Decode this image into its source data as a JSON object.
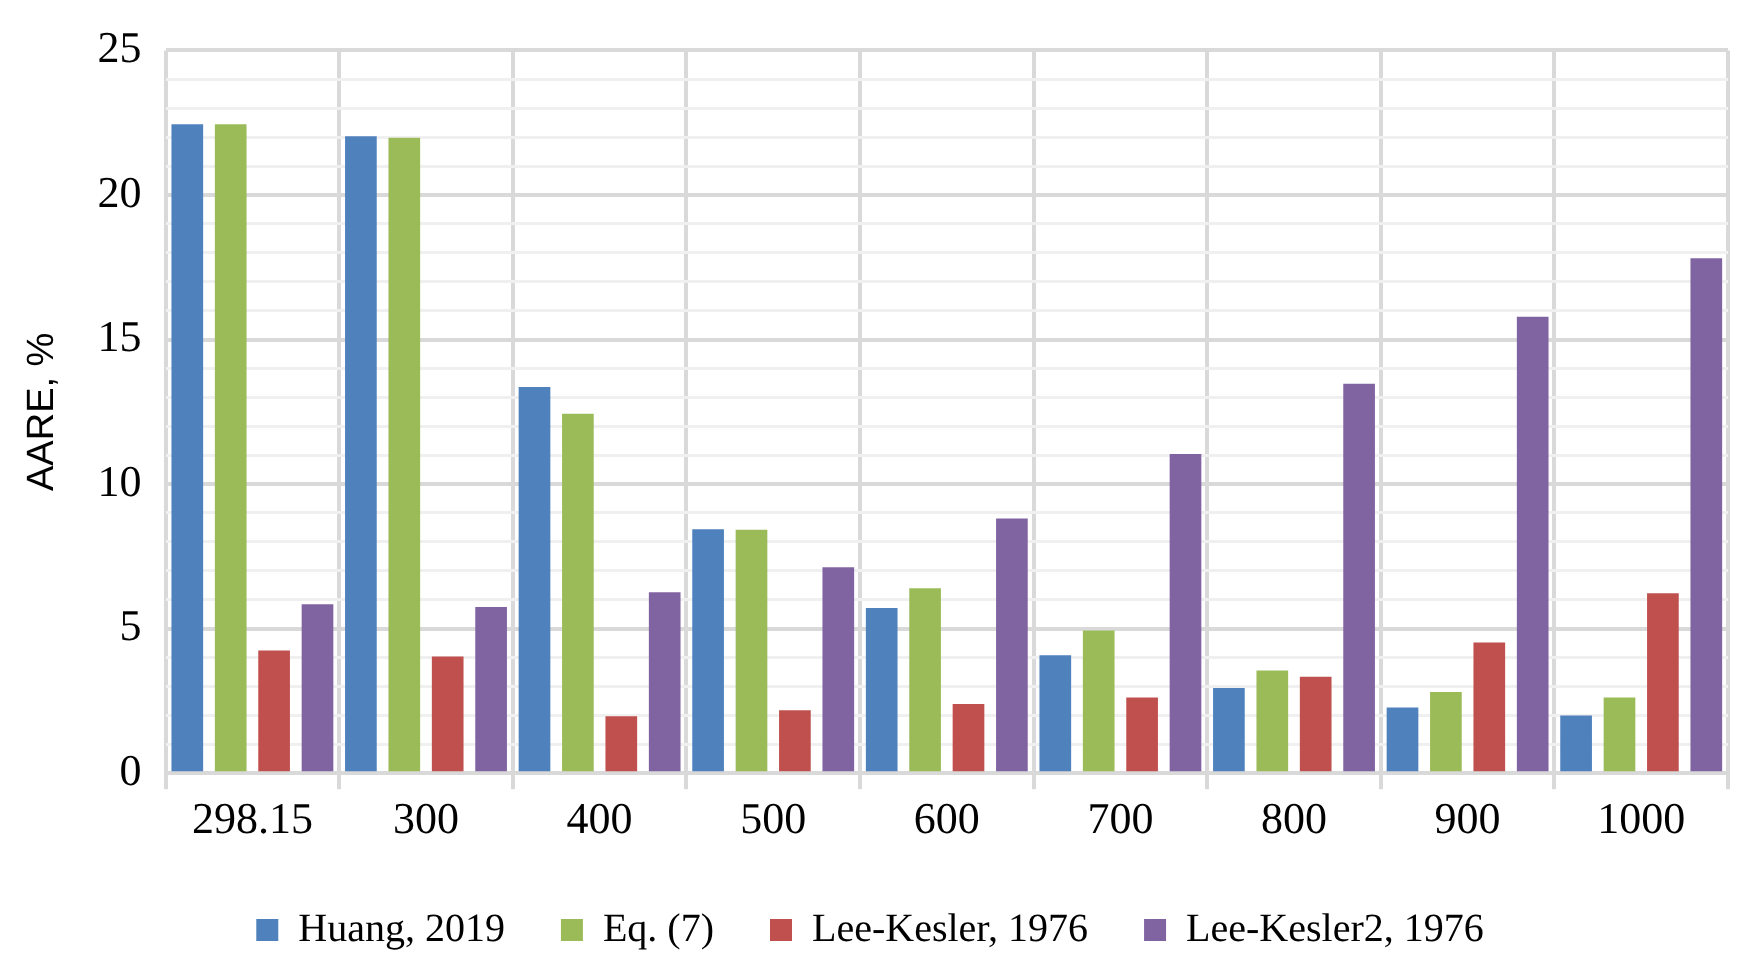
{
  "chart_data": {
    "type": "bar",
    "ylabel": "AARE, %",
    "categories": [
      "298.15",
      "300",
      "400",
      "500",
      "600",
      "700",
      "800",
      "900",
      "1000"
    ],
    "series": [
      {
        "name": "Huang, 2019",
        "color": "#4f81bd",
        "values": [
          22.45,
          22.03,
          13.36,
          8.44,
          5.71,
          4.08,
          2.95,
          2.27,
          2.0
        ]
      },
      {
        "name": "Eq. (7)",
        "color": "#9bbb59",
        "values": [
          22.45,
          21.98,
          12.43,
          8.42,
          6.4,
          4.94,
          3.55,
          2.81,
          2.62
        ]
      },
      {
        "name": "Lee-Kesler, 1976",
        "color": "#c0504d",
        "values": [
          4.24,
          4.04,
          1.97,
          2.18,
          2.39,
          2.62,
          3.34,
          4.52,
          6.22
        ]
      },
      {
        "name": "Lee-Kesler2, 1976",
        "color": "#8064a2",
        "values": [
          5.84,
          5.75,
          6.26,
          7.12,
          8.81,
          11.04,
          13.47,
          15.79,
          17.81
        ]
      }
    ],
    "ylim": [
      0,
      25
    ],
    "yticks": [
      0,
      {
        "value": 1,
        "label": null
      },
      {
        "value": 2,
        "label": null
      },
      {
        "value": 3,
        "label": null
      },
      {
        "value": 4,
        "label": null
      },
      5,
      {
        "value": 6,
        "label": null
      },
      {
        "value": 7,
        "label": null
      },
      {
        "value": 8,
        "label": null
      },
      {
        "value": 9,
        "label": null
      },
      10,
      {
        "value": 11,
        "label": null
      },
      {
        "value": 12,
        "label": null
      },
      {
        "value": 13,
        "label": null
      },
      {
        "value": 14,
        "label": null
      },
      15,
      {
        "value": 16,
        "label": null
      },
      {
        "value": 17,
        "label": null
      },
      {
        "value": 18,
        "label": null
      },
      {
        "value": 19,
        "label": null
      },
      20,
      {
        "value": 21,
        "label": null
      },
      {
        "value": 22,
        "label": null
      },
      {
        "value": 23,
        "label": null
      },
      {
        "value": 24,
        "label": null
      },
      25
    ],
    "grid": true,
    "legend": "bottom"
  }
}
